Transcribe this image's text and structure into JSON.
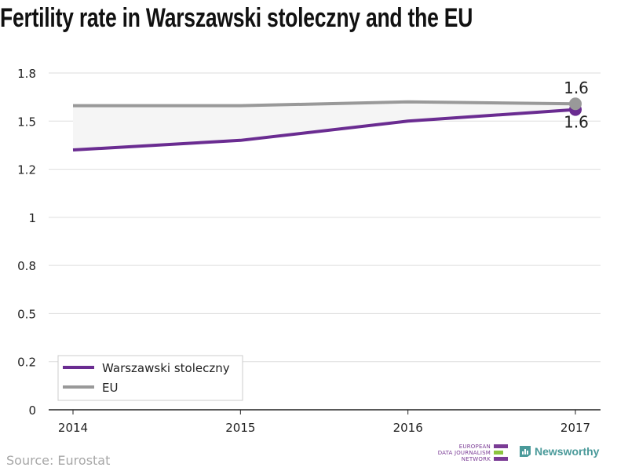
{
  "title": "Fertility rate in Warszawski stoleczny and the EU",
  "source": "Source: Eurostat",
  "logos": {
    "edjnet_lines": [
      "EUROPEAN",
      "DATA JOURNALISM",
      "NETWORK"
    ],
    "newsworthy": "Newsworthy"
  },
  "colors": {
    "warszawski": "#6a2c91",
    "eu": "#999999",
    "band": "#f5f5f5",
    "grid": "#dddddd",
    "edjnet_purple": "#7a3b95",
    "edjnet_green": "#8cc63f",
    "newsworthy_teal": "#4a9a9a"
  },
  "chart_data": {
    "type": "line",
    "title": "Fertility rate in Warszawski stoleczny and the EU",
    "xlabel": "",
    "ylabel": "",
    "x": [
      "2014",
      "2015",
      "2016",
      "2017"
    ],
    "ylim": [
      0,
      1.75
    ],
    "yticks": [
      0,
      0.25,
      0.5,
      0.75,
      1,
      1.25,
      1.5,
      1.75
    ],
    "ytick_labels": [
      "0",
      "0.2",
      "0.5",
      "0.8",
      "1",
      "1.2",
      "1.5",
      "1.8"
    ],
    "series": [
      {
        "name": "Warszawski stoleczny",
        "values": [
          1.35,
          1.4,
          1.5,
          1.56
        ],
        "end_label": "1.6"
      },
      {
        "name": "EU",
        "values": [
          1.58,
          1.58,
          1.6,
          1.59
        ],
        "end_label": "1.6"
      }
    ],
    "legend": {
      "position": "bottom-left",
      "entries": [
        "Warszawski stoleczny",
        "EU"
      ]
    },
    "grid": true
  }
}
